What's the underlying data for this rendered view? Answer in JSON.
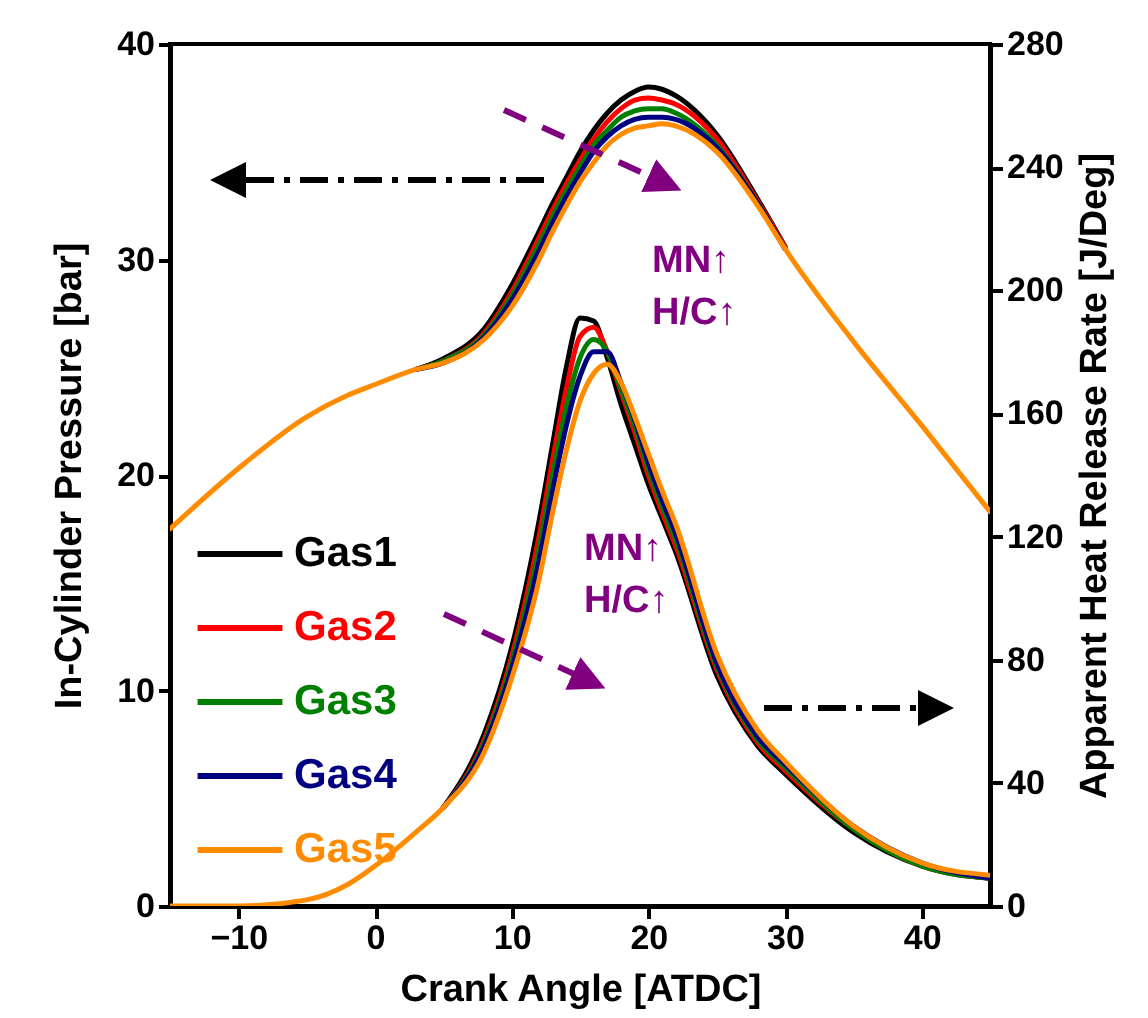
{
  "chart_data": {
    "type": "line",
    "xlabel": "Crank Angle [ATDC]",
    "ylabel": "In-Cylinder Pressure [bar]",
    "y2label": "Apparent Heat Release Rate [J/Deg]",
    "x": [
      -15,
      -10,
      -5,
      -2,
      0,
      3,
      5,
      8,
      10,
      12,
      13,
      14,
      15,
      16,
      17,
      18,
      19,
      20,
      21,
      22,
      25,
      28,
      30,
      35,
      40,
      45
    ],
    "xlim": [
      -15,
      45
    ],
    "xticks": [
      -10,
      0,
      10,
      20,
      30,
      40
    ],
    "ylim": [
      0,
      40
    ],
    "yticks": [
      0,
      10,
      20,
      30,
      40
    ],
    "y2lim": [
      0,
      280
    ],
    "y2ticks": [
      0,
      40,
      80,
      120,
      160,
      200,
      240,
      280
    ],
    "legend": "left",
    "grid": false,
    "line_style": "solid",
    "marker": "none",
    "annotations": [
      "MN↑\nH/C↑",
      "MN↑\nH/C↑"
    ],
    "series": [
      {
        "name": "Gas1",
        "color": "#000000",
        "values": [
          null,
          null,
          null,
          null,
          null,
          24.9,
          25.4,
          26.8,
          28.8,
          31.3,
          32.6,
          33.8,
          35.0,
          36.0,
          36.8,
          37.4,
          37.8,
          38.0,
          37.9,
          37.6,
          35.8,
          32.8,
          30.6,
          null,
          null,
          null
        ]
      },
      {
        "name": "Gas2",
        "color": "#ff0000",
        "values": [
          null,
          null,
          null,
          null,
          null,
          24.9,
          25.3,
          26.6,
          28.5,
          31.0,
          32.3,
          33.5,
          34.6,
          35.6,
          36.4,
          37.0,
          37.4,
          37.5,
          37.4,
          37.2,
          35.6,
          32.7,
          30.6,
          null,
          null,
          null
        ]
      },
      {
        "name": "Gas3",
        "color": "#008000",
        "values": [
          null,
          null,
          null,
          null,
          null,
          24.9,
          25.3,
          26.5,
          28.3,
          30.7,
          32.0,
          33.2,
          34.3,
          35.3,
          36.0,
          36.6,
          36.9,
          37.0,
          37.0,
          36.8,
          35.3,
          32.6,
          30.5,
          null,
          null,
          null
        ]
      },
      {
        "name": "Gas4",
        "color": "#000080",
        "values": [
          null,
          null,
          null,
          null,
          null,
          24.9,
          25.2,
          26.4,
          28.1,
          30.4,
          31.7,
          32.9,
          34.0,
          35.0,
          35.7,
          36.2,
          36.5,
          36.6,
          36.6,
          36.5,
          35.2,
          32.6,
          30.5,
          null,
          null,
          null
        ]
      },
      {
        "name": "Gas5",
        "color": "#ff8c00",
        "values": [
          17.5,
          20.3,
          22.7,
          23.7,
          24.2,
          24.9,
          25.2,
          26.3,
          27.8,
          30.0,
          31.3,
          32.5,
          33.6,
          34.5,
          35.3,
          35.8,
          36.1,
          36.2,
          36.3,
          36.2,
          35.0,
          32.5,
          30.5,
          26.2,
          22.3,
          18.3
        ]
      },
      {
        "color": "#000000",
        "axis": "y2",
        "values": [
          null,
          null,
          null,
          null,
          null,
          null,
          32,
          56,
          84,
          125,
          150,
          175,
          191,
          190,
          178,
          163,
          150,
          137,
          126,
          115,
          75,
          52,
          43,
          24,
          13,
          9
        ]
      },
      {
        "color": "#ff0000",
        "axis": "y2",
        "values": [
          null,
          null,
          null,
          null,
          null,
          null,
          32,
          54,
          81,
          120,
          145,
          168,
          185,
          188,
          180,
          167,
          154,
          140,
          128,
          117,
          77,
          53,
          44,
          25,
          13,
          9
        ]
      },
      {
        "color": "#008000",
        "axis": "y2",
        "values": [
          null,
          null,
          null,
          null,
          null,
          null,
          32,
          53,
          79,
          116,
          140,
          162,
          178,
          184,
          180,
          168,
          156,
          142,
          130,
          119,
          78,
          54,
          45,
          25,
          13,
          9
        ]
      },
      {
        "color": "#000080",
        "axis": "y2",
        "values": [
          null,
          null,
          null,
          null,
          null,
          null,
          32,
          52,
          77,
          112,
          135,
          156,
          172,
          180,
          180,
          170,
          158,
          144,
          132,
          121,
          79,
          55,
          46,
          26,
          14,
          9
        ]
      },
      {
        "color": "#ff8c00",
        "axis": "y2",
        "values": [
          0,
          0,
          2,
          7,
          13,
          24,
          32,
          50,
          74,
          106,
          128,
          148,
          164,
          173,
          176,
          170,
          159,
          147,
          135,
          124,
          82,
          57,
          47,
          26,
          14,
          10
        ]
      }
    ]
  }
}
